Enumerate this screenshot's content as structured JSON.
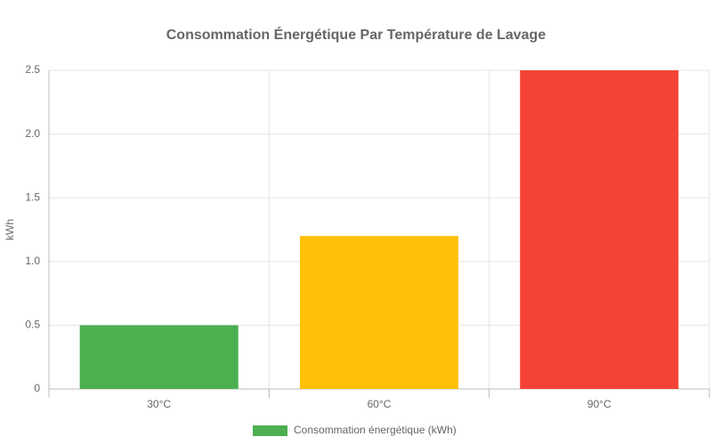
{
  "chart_data": {
    "type": "bar",
    "title": "Consommation Énergétique Par Température de Lavage",
    "y_label": "kWh",
    "categories": [
      "30°C",
      "60°C",
      "90°C"
    ],
    "series": [
      {
        "name": "Consommation énergétique (kWh)",
        "colors": [
          "#4caf50",
          "#ffc107",
          "#f44336"
        ],
        "values": [
          0.5,
          1.2,
          2.5
        ]
      }
    ],
    "ylim": [
      0,
      2.5
    ],
    "yticks": [
      0,
      0.5,
      {
        "value": 1,
        "label": "1.0"
      },
      1.5,
      {
        "value": 2,
        "label": "2.0"
      },
      2.5
    ],
    "grid": true,
    "legend": "bottom"
  }
}
